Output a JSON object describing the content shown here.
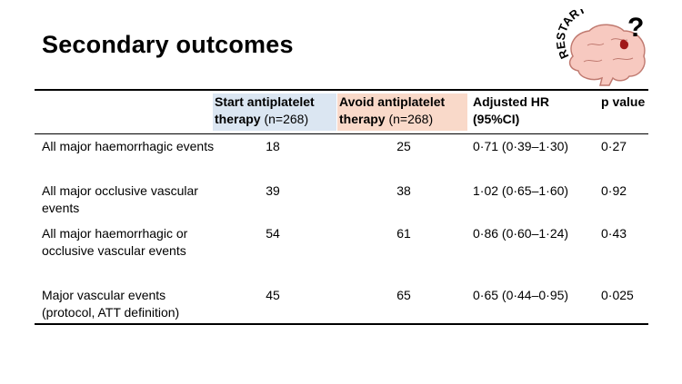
{
  "slide": {
    "title": "Secondary outcomes",
    "logo_text": "RESTART",
    "logo_mark": "?"
  },
  "colors": {
    "start_header_bg": "#dbe6f2",
    "avoid_header_bg": "#f9d9c9",
    "brain_fill": "#f7c9c0",
    "brain_stroke": "#c07a70",
    "bleed": "#a01818"
  },
  "table": {
    "headers": {
      "start": {
        "bold": "Start antiplatelet therapy",
        "normal": " (n=268)"
      },
      "avoid": {
        "bold": "Avoid antiplatelet therapy",
        "normal": " (n=268)"
      },
      "hr": "Adjusted HR (95%CI)",
      "p": "p value"
    },
    "rows": [
      {
        "label": "All major haemorrhagic events",
        "start": "18",
        "avoid": "25",
        "hr": "0·71 (0·39–1·30)",
        "p": "0·27"
      },
      {
        "label": "All major occlusive vascular events",
        "start": "39",
        "avoid": "38",
        "hr": "1·02 (0·65–1·60)",
        "p": "0·92"
      },
      {
        "label": "All major haemorrhagic or occlusive vascular events",
        "start": "54",
        "avoid": "61",
        "hr": "0·86 (0·60–1·24)",
        "p": "0·43"
      },
      {
        "label": "Major vascular events (protocol, ATT definition)",
        "start": "45",
        "avoid": "65",
        "hr": "0·65 (0·44–0·95)",
        "p": "0·025"
      }
    ]
  }
}
